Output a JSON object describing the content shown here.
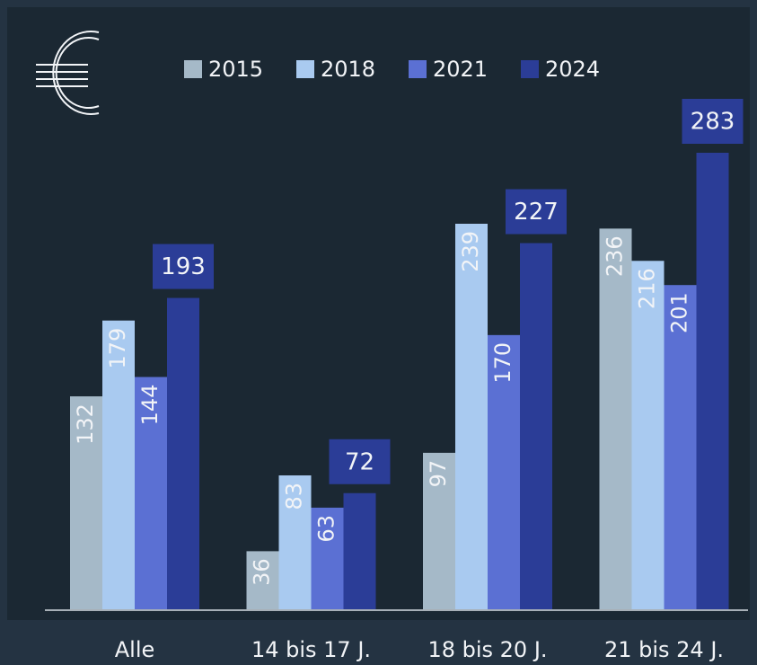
{
  "chart_data": {
    "type": "bar",
    "categories": [
      "Alle",
      "14 bis 17 J.",
      "18 bis 20 J.",
      "21 bis 24 J."
    ],
    "series": [
      {
        "name": "2015",
        "color": "#a5b9c8",
        "values": [
          132,
          36,
          97,
          236
        ]
      },
      {
        "name": "2018",
        "color": "#a9caf0",
        "values": [
          179,
          83,
          239,
          216
        ]
      },
      {
        "name": "2021",
        "color": "#5b70d3",
        "values": [
          144,
          63,
          170,
          201
        ]
      },
      {
        "name": "2024",
        "color": "#2b3d97",
        "values": [
          193,
          72,
          227,
          283
        ]
      }
    ],
    "legend": "top"
  }
}
